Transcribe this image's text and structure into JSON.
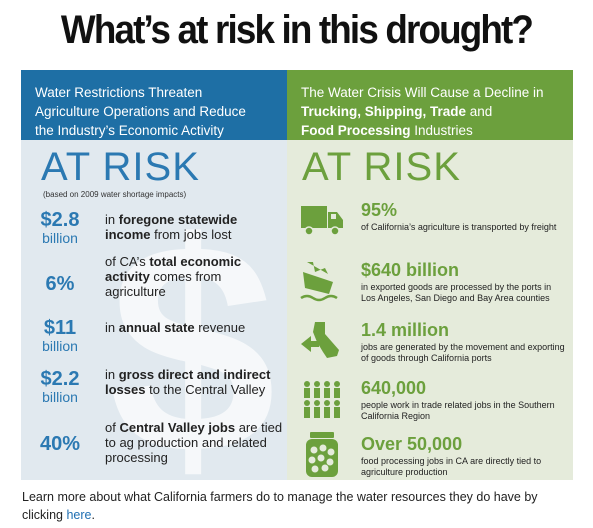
{
  "title": "What’s at risk in this drought?",
  "left": {
    "header": [
      "Water Restrictions Threaten",
      "Agriculture Operations and  Reduce",
      "the Industry’s Economic Activity"
    ],
    "at_risk": "AT RISK",
    "basis": "(based on 2009 water shortage impacts)",
    "dollar_symbol": "$",
    "items": [
      {
        "num": "$2.8",
        "unit": "billion",
        "pre": "in ",
        "bold": "foregone statewide income",
        "post": " from jobs lost"
      },
      {
        "num": "6%",
        "unit": "",
        "pre": "of CA’s ",
        "bold": "total economic activity",
        "post": " comes from agriculture"
      },
      {
        "num": "$11",
        "unit": "billion",
        "pre": "in ",
        "bold": "annual state",
        "post": " revenue"
      },
      {
        "num": "$2.2",
        "unit": "billion",
        "pre": "in ",
        "bold": "gross direct and indirect losses",
        "post": " to the Central Valley"
      },
      {
        "num": "40%",
        "unit": "",
        "pre": "of ",
        "bold": "Central Valley jobs",
        "post": " are tied to ag production and related processing"
      }
    ]
  },
  "right": {
    "header_line1": "The Water Crisis Will Cause a Decline in",
    "header_bold": "Trucking, Shipping, Trade",
    "header_mid": " and",
    "header_bold2": "Food Processing",
    "header_end": " Industries",
    "at_risk": "AT RISK",
    "items": [
      {
        "icon": "truck-icon",
        "num": "95%",
        "text": "of California’s agriculture is transported by freight"
      },
      {
        "icon": "ship-icon",
        "num": "$640 billion",
        "text": "in exported goods are processed by the ports in Los Angeles, San Diego and Bay Area counties"
      },
      {
        "icon": "california-map-icon",
        "num": "1.4 million",
        "text": "jobs are generated by the movement and exporting of goods through California ports"
      },
      {
        "icon": "people-icon",
        "num": "640,000",
        "text": "people work in trade related jobs in the Southern California Region"
      },
      {
        "icon": "jar-icon",
        "num": "Over 50,000",
        "text": "food processing jobs in CA are directly tied to agriculture production"
      }
    ]
  },
  "footer": {
    "text": "Learn more about what California farmers do to manage the water resources they do have by clicking",
    "link": "here",
    "end": "."
  },
  "colors": {
    "blue": "#1e6fa5",
    "green": "#6ca03d",
    "left_bg": "#e1e9ef",
    "right_bg": "#e5ebdb"
  }
}
